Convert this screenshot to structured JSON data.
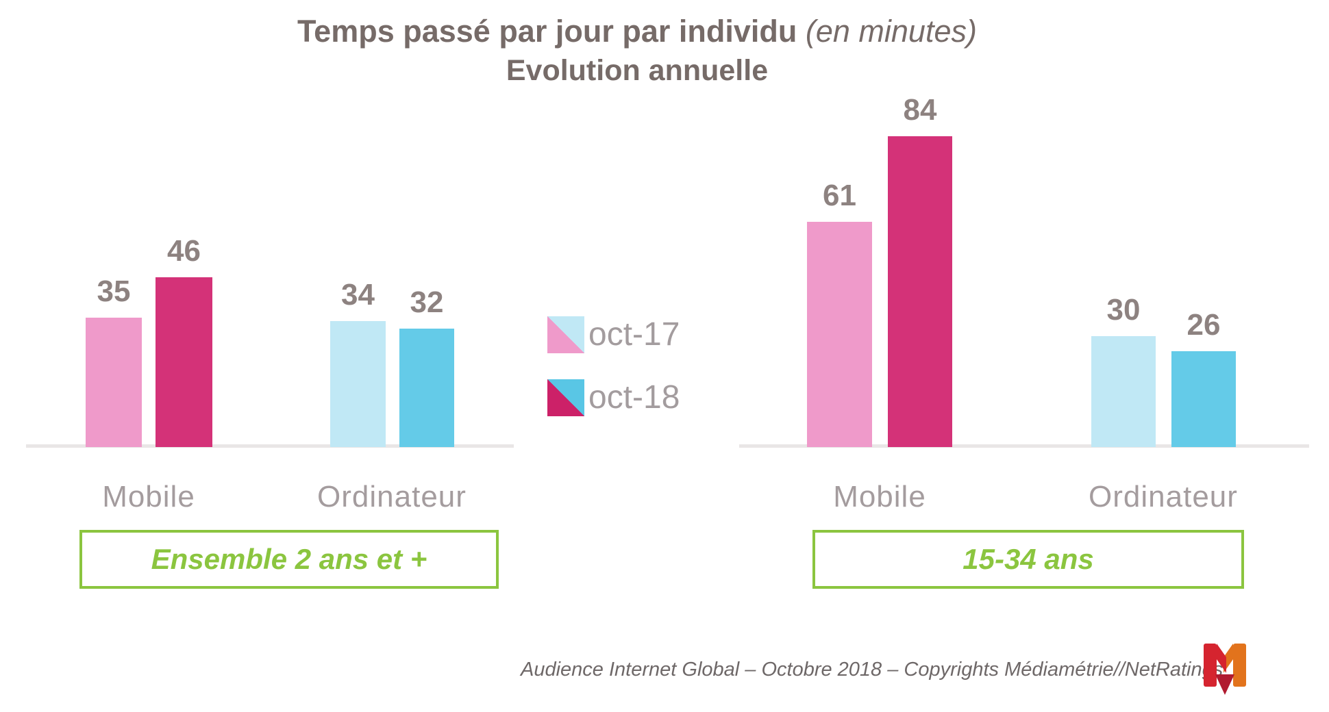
{
  "title": {
    "line1_bold": "Temps passé par jour par individu",
    "line1_italic": "(en minutes)",
    "line2": "Evolution annuelle"
  },
  "legend": {
    "items": [
      {
        "label": "oct-17",
        "swatch_bottom_left": "#ef9aca",
        "swatch_top_right": "#c0e8f5"
      },
      {
        "label": "oct-18",
        "swatch_bottom_left": "#cc2168",
        "swatch_top_right": "#59c6e5"
      }
    ]
  },
  "footer": {
    "text": "Audience Internet Global – Octobre 2018 – Copyrights Médiamétrie//NetRatings"
  },
  "logo": {
    "icon": "mediametrie-m-logo",
    "colors": {
      "red": "#d5242f",
      "orange": "#e2731c",
      "dark_red": "#b01b30"
    }
  },
  "colors": {
    "title_text": "#766b68",
    "value_label": "#8d8280",
    "category_label": "#a49c9e",
    "legend_label": "#a39c9e",
    "green_accent": "#8bc53f",
    "baseline_gray": "#e9e6e6",
    "footer_gray": "#6e6868"
  },
  "chart_data": {
    "type": "bar",
    "unit": "minutes",
    "title": "Temps passé par jour par individu (en minutes) — Evolution annuelle",
    "series_labels": [
      "oct-17",
      "oct-18"
    ],
    "ylim": [
      0,
      90
    ],
    "grid": false,
    "legend_position": "center-between-groups",
    "value_labels_shown": true,
    "colors": {
      "mobile_oct17": "#ef9aca",
      "mobile_oct18": "#d43278",
      "ordinateur_oct17": "#c0e8f5",
      "ordinateur_oct18": "#64cbe8"
    },
    "groups": [
      {
        "name": "Ensemble 2 ans et +",
        "categories": [
          "Mobile",
          "Ordinateur"
        ],
        "series": [
          {
            "name": "oct-17",
            "values": [
              35,
              34
            ]
          },
          {
            "name": "oct-18",
            "values": [
              46,
              32
            ]
          }
        ]
      },
      {
        "name": "15-34 ans",
        "categories": [
          "Mobile",
          "Ordinateur"
        ],
        "series": [
          {
            "name": "oct-17",
            "values": [
              61,
              30
            ]
          },
          {
            "name": "oct-18",
            "values": [
              84,
              26
            ]
          }
        ]
      }
    ]
  }
}
